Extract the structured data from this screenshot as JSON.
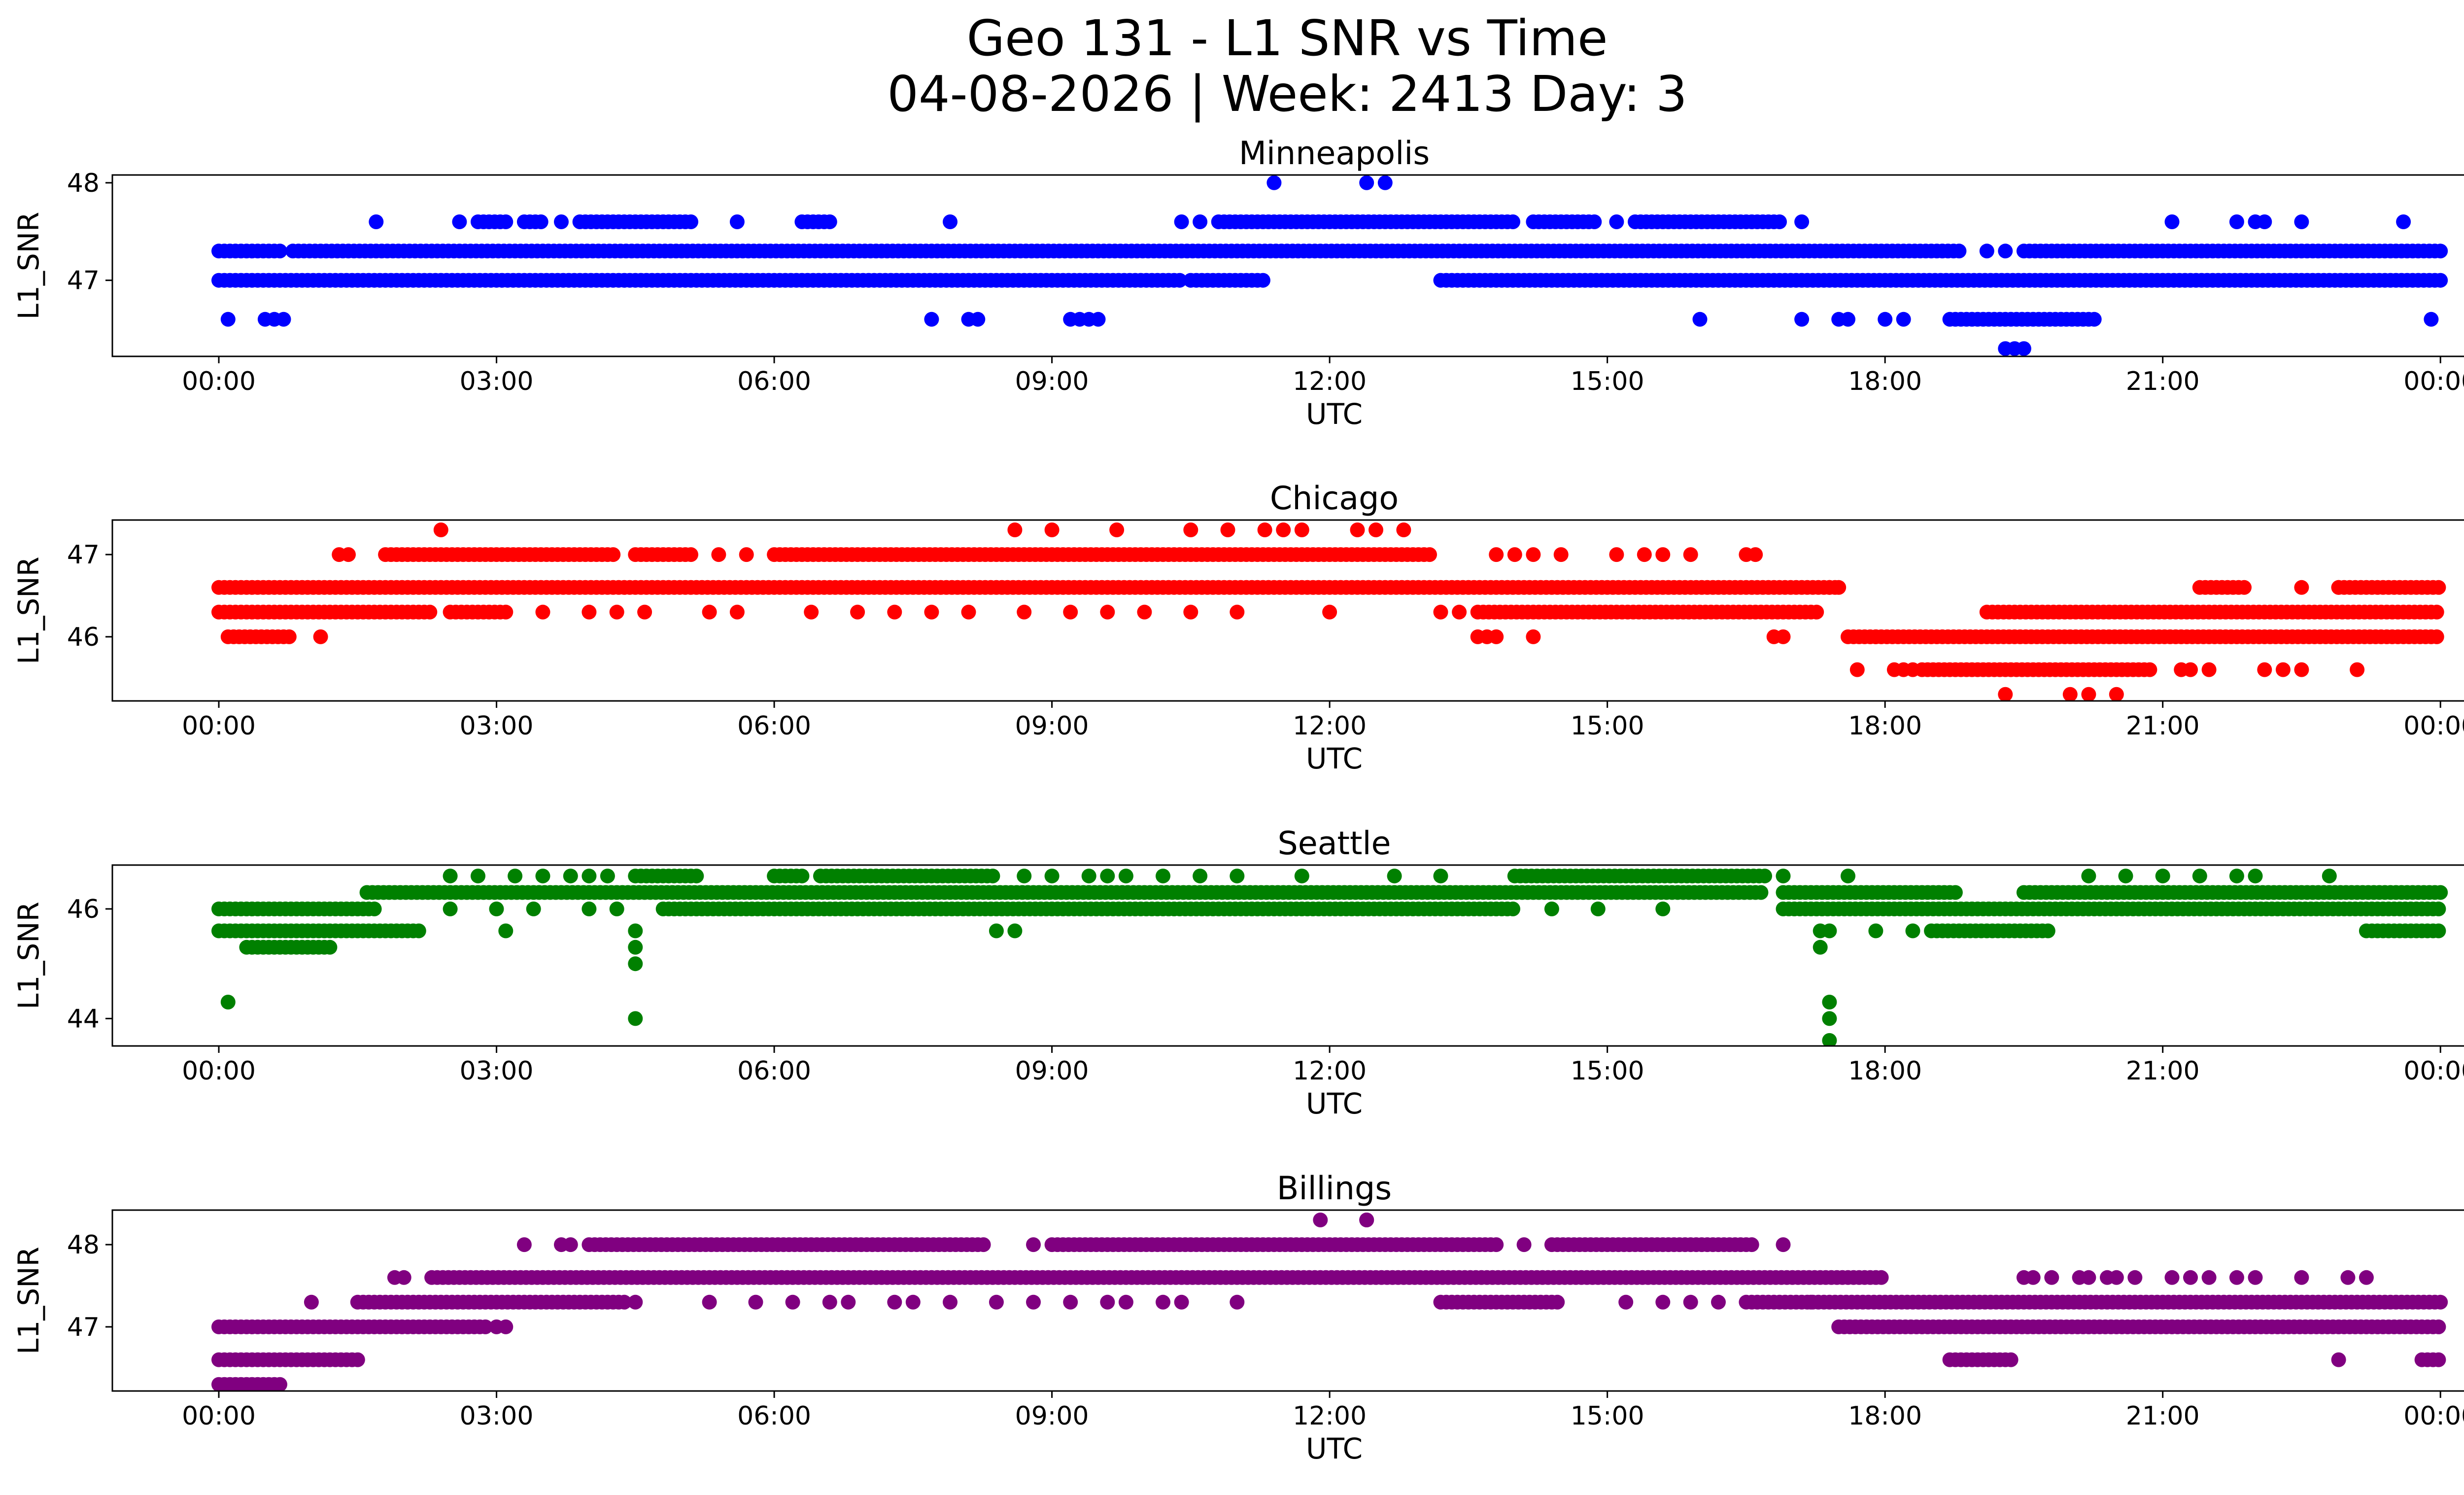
{
  "suptitle_line1": "Geo 131 - L1 SNR vs Time",
  "suptitle_line2": "04-08-2026 | Week: 2413 Day: 3",
  "chart_data": [
    {
      "type": "scatter",
      "title": "Minneapolis",
      "xlabel": "UTC",
      "ylabel": "L1_SNR",
      "color": "#0000ff",
      "x_ticks": [
        "00:00",
        "03:00",
        "06:00",
        "09:00",
        "12:00",
        "15:00",
        "18:00",
        "21:00",
        "00:00"
      ],
      "x_range_hours": [
        -1.15,
        25.25
      ],
      "y_ticks": [
        47,
        48
      ],
      "ylim": [
        46.22,
        48.08
      ],
      "levels": [
        {
          "y": 47.0,
          "segments": [
            [
              0.0,
              10.4
            ],
            [
              10.5,
              11.3
            ],
            [
              13.2,
              24.0
            ]
          ]
        },
        {
          "y": 47.3,
          "segments": [
            [
              0.0,
              0.7
            ],
            [
              0.8,
              18.8
            ],
            [
              19.5,
              24.0
            ]
          ]
        },
        {
          "y": 47.6,
          "segments": [
            [
              2.8,
              3.1
            ],
            [
              3.3,
              3.5
            ],
            [
              3.9,
              5.1
            ],
            [
              6.3,
              6.6
            ],
            [
              10.8,
              14.0
            ],
            [
              14.2,
              14.9
            ],
            [
              15.3,
              16.9
            ]
          ]
        },
        {
          "y": 46.6,
          "segments": [
            [
              18.7,
              20.3
            ]
          ]
        }
      ],
      "points": [
        [
          1.7,
          47.6
        ],
        [
          2.6,
          47.6
        ],
        [
          3.7,
          47.6
        ],
        [
          5.6,
          47.6
        ],
        [
          7.9,
          47.6
        ],
        [
          10.4,
          47.6
        ],
        [
          10.6,
          47.6
        ],
        [
          15.1,
          47.6
        ],
        [
          17.1,
          47.6
        ],
        [
          21.1,
          47.6
        ],
        [
          21.8,
          47.6
        ],
        [
          22.0,
          47.6
        ],
        [
          22.1,
          47.6
        ],
        [
          22.5,
          47.6
        ],
        [
          23.6,
          47.6
        ],
        [
          11.4,
          48.0
        ],
        [
          12.4,
          48.0
        ],
        [
          12.6,
          48.0
        ],
        [
          0.1,
          46.6
        ],
        [
          0.5,
          46.6
        ],
        [
          0.6,
          46.6
        ],
        [
          0.7,
          46.6
        ],
        [
          7.7,
          46.6
        ],
        [
          8.1,
          46.6
        ],
        [
          8.2,
          46.6
        ],
        [
          9.2,
          46.6
        ],
        [
          9.3,
          46.6
        ],
        [
          9.4,
          46.6
        ],
        [
          9.5,
          46.6
        ],
        [
          16.0,
          46.6
        ],
        [
          17.1,
          46.6
        ],
        [
          17.5,
          46.6
        ],
        [
          17.6,
          46.6
        ],
        [
          18.0,
          46.6
        ],
        [
          18.2,
          46.6
        ],
        [
          23.9,
          46.6
        ],
        [
          19.3,
          46.3
        ],
        [
          19.4,
          46.3
        ],
        [
          19.5,
          46.3
        ],
        [
          19.1,
          47.3
        ],
        [
          19.3,
          47.3
        ]
      ]
    },
    {
      "type": "scatter",
      "title": "Chicago",
      "xlabel": "UTC",
      "ylabel": "L1_SNR",
      "color": "#ff0000",
      "x_ticks": [
        "00:00",
        "03:00",
        "06:00",
        "09:00",
        "12:00",
        "15:00",
        "18:00",
        "21:00",
        "00:00"
      ],
      "x_range_hours": [
        -1.15,
        25.25
      ],
      "y_ticks": [
        46,
        47
      ],
      "ylim": [
        45.22,
        47.42
      ],
      "levels": [
        {
          "y": 46.6,
          "segments": [
            [
              0.0,
              17.5
            ],
            [
              21.4,
              21.9
            ],
            [
              22.9,
              24.0
            ]
          ]
        },
        {
          "y": 46.3,
          "segments": [
            [
              0.0,
              2.3
            ],
            [
              2.5,
              3.1
            ],
            [
              13.6,
              17.3
            ],
            [
              19.1,
              24.0
            ]
          ]
        },
        {
          "y": 46.0,
          "segments": [
            [
              0.1,
              0.8
            ],
            [
              17.6,
              24.0
            ]
          ]
        },
        {
          "y": 47.0,
          "segments": [
            [
              1.8,
              4.3
            ],
            [
              4.5,
              5.1
            ],
            [
              6.0,
              13.1
            ]
          ]
        },
        {
          "y": 45.6,
          "segments": [
            [
              18.4,
              20.9
            ]
          ]
        }
      ],
      "points": [
        [
          3.5,
          46.3
        ],
        [
          4.0,
          46.3
        ],
        [
          4.3,
          46.3
        ],
        [
          4.6,
          46.3
        ],
        [
          5.3,
          46.3
        ],
        [
          5.6,
          46.3
        ],
        [
          6.4,
          46.3
        ],
        [
          6.9,
          46.3
        ],
        [
          7.3,
          46.3
        ],
        [
          7.7,
          46.3
        ],
        [
          8.1,
          46.3
        ],
        [
          8.7,
          46.3
        ],
        [
          9.2,
          46.3
        ],
        [
          9.6,
          46.3
        ],
        [
          10.0,
          46.3
        ],
        [
          10.5,
          46.3
        ],
        [
          11.0,
          46.3
        ],
        [
          12.0,
          46.3
        ],
        [
          13.2,
          46.3
        ],
        [
          13.4,
          46.3
        ],
        [
          1.3,
          47.0
        ],
        [
          1.4,
          47.0
        ],
        [
          5.4,
          47.0
        ],
        [
          5.7,
          47.0
        ],
        [
          13.8,
          47.0
        ],
        [
          14.0,
          47.0
        ],
        [
          14.2,
          47.0
        ],
        [
          14.5,
          47.0
        ],
        [
          15.1,
          47.0
        ],
        [
          15.4,
          47.0
        ],
        [
          15.6,
          47.0
        ],
        [
          15.9,
          47.0
        ],
        [
          16.5,
          47.0
        ],
        [
          16.6,
          47.0
        ],
        [
          2.4,
          47.3
        ],
        [
          8.6,
          47.3
        ],
        [
          9.0,
          47.3
        ],
        [
          9.7,
          47.3
        ],
        [
          10.5,
          47.3
        ],
        [
          10.9,
          47.3
        ],
        [
          11.3,
          47.3
        ],
        [
          11.5,
          47.3
        ],
        [
          11.7,
          47.3
        ],
        [
          12.3,
          47.3
        ],
        [
          12.5,
          47.3
        ],
        [
          12.8,
          47.3
        ],
        [
          1.1,
          46.0
        ],
        [
          13.6,
          46.0
        ],
        [
          13.7,
          46.0
        ],
        [
          13.8,
          46.0
        ],
        [
          14.2,
          46.0
        ],
        [
          16.8,
          46.0
        ],
        [
          16.9,
          46.0
        ],
        [
          17.9,
          46.0
        ],
        [
          17.4,
          46.6
        ],
        [
          17.5,
          46.6
        ],
        [
          22.5,
          46.6
        ],
        [
          22.9,
          46.6
        ],
        [
          17.7,
          45.6
        ],
        [
          18.1,
          45.6
        ],
        [
          18.2,
          45.6
        ],
        [
          18.3,
          45.6
        ],
        [
          21.2,
          45.6
        ],
        [
          21.3,
          45.6
        ],
        [
          21.5,
          45.6
        ],
        [
          22.1,
          45.6
        ],
        [
          22.3,
          45.6
        ],
        [
          22.5,
          45.6
        ],
        [
          23.1,
          45.6
        ],
        [
          19.3,
          45.3
        ],
        [
          20.0,
          45.3
        ],
        [
          20.2,
          45.3
        ],
        [
          20.5,
          45.3
        ]
      ]
    },
    {
      "type": "scatter",
      "title": "Seattle",
      "xlabel": "UTC",
      "ylabel": "L1_SNR",
      "color": "#008000",
      "x_ticks": [
        "00:00",
        "03:00",
        "06:00",
        "09:00",
        "12:00",
        "15:00",
        "18:00",
        "21:00",
        "00:00"
      ],
      "x_range_hours": [
        -1.15,
        25.25
      ],
      "y_ticks": [
        44,
        46
      ],
      "ylim": [
        43.5,
        46.8
      ],
      "levels": [
        {
          "y": 46.0,
          "segments": [
            [
              0.0,
              1.7
            ],
            [
              4.8,
              14.0
            ],
            [
              16.9,
              24.0
            ]
          ]
        },
        {
          "y": 45.6,
          "segments": [
            [
              0.0,
              2.2
            ],
            [
              18.5,
              19.8
            ],
            [
              23.2,
              24.0
            ]
          ]
        },
        {
          "y": 46.3,
          "segments": [
            [
              1.6,
              16.7
            ],
            [
              16.9,
              18.8
            ],
            [
              19.5,
              24.0
            ]
          ]
        },
        {
          "y": 46.6,
          "segments": [
            [
              4.5,
              5.2
            ],
            [
              6.0,
              6.3
            ],
            [
              6.5,
              8.4
            ],
            [
              14.0,
              16.7
            ]
          ]
        },
        {
          "y": 45.3,
          "segments": [
            [
              0.3,
              1.2
            ]
          ]
        }
      ],
      "points": [
        [
          0.1,
          44.3
        ],
        [
          2.5,
          46.6
        ],
        [
          2.8,
          46.6
        ],
        [
          3.2,
          46.6
        ],
        [
          3.5,
          46.6
        ],
        [
          3.8,
          46.6
        ],
        [
          4.0,
          46.6
        ],
        [
          4.2,
          46.6
        ],
        [
          8.7,
          46.6
        ],
        [
          9.0,
          46.6
        ],
        [
          9.4,
          46.6
        ],
        [
          9.6,
          46.6
        ],
        [
          9.8,
          46.6
        ],
        [
          10.2,
          46.6
        ],
        [
          10.6,
          46.6
        ],
        [
          11.0,
          46.6
        ],
        [
          11.7,
          46.6
        ],
        [
          12.7,
          46.6
        ],
        [
          13.2,
          46.6
        ],
        [
          16.9,
          46.6
        ],
        [
          17.6,
          46.6
        ],
        [
          20.2,
          46.6
        ],
        [
          20.6,
          46.6
        ],
        [
          21.0,
          46.6
        ],
        [
          21.4,
          46.6
        ],
        [
          21.8,
          46.6
        ],
        [
          22.0,
          46.6
        ],
        [
          22.8,
          46.6
        ],
        [
          3.1,
          45.6
        ],
        [
          8.4,
          45.6
        ],
        [
          8.6,
          45.6
        ],
        [
          17.3,
          45.6
        ],
        [
          17.4,
          45.6
        ],
        [
          17.9,
          45.6
        ],
        [
          18.3,
          45.6
        ],
        [
          2.5,
          46.0
        ],
        [
          3.0,
          46.0
        ],
        [
          3.4,
          46.0
        ],
        [
          4.0,
          46.0
        ],
        [
          4.3,
          46.0
        ],
        [
          14.4,
          46.0
        ],
        [
          14.9,
          46.0
        ],
        [
          15.6,
          46.0
        ],
        [
          4.5,
          45.6
        ],
        [
          4.5,
          45.3
        ],
        [
          4.5,
          45.0
        ],
        [
          4.5,
          44.0
        ],
        [
          17.3,
          45.3
        ],
        [
          17.4,
          44.3
        ],
        [
          17.4,
          44.0
        ],
        [
          17.4,
          43.6
        ]
      ]
    },
    {
      "type": "scatter",
      "title": "Billings",
      "xlabel": "UTC",
      "ylabel": "L1_SNR",
      "color": "#800080",
      "x_ticks": [
        "00:00",
        "03:00",
        "06:00",
        "09:00",
        "12:00",
        "15:00",
        "18:00",
        "21:00",
        "00:00"
      ],
      "x_range_hours": [
        -1.15,
        25.25
      ],
      "y_ticks": [
        47,
        48
      ],
      "ylim": [
        46.22,
        48.42
      ],
      "levels": [
        {
          "y": 47.0,
          "segments": [
            [
              0.0,
              2.9
            ],
            [
              17.5,
              24.0
            ]
          ]
        },
        {
          "y": 46.6,
          "segments": [
            [
              0.0,
              1.5
            ],
            [
              18.7,
              19.4
            ],
            [
              23.8,
              24.0
            ]
          ]
        },
        {
          "y": 46.3,
          "segments": [
            [
              0.0,
              0.7
            ]
          ]
        },
        {
          "y": 47.3,
          "segments": [
            [
              1.5,
              4.4
            ],
            [
              13.2,
              14.5
            ],
            [
              16.5,
              24.0
            ]
          ]
        },
        {
          "y": 47.6,
          "segments": [
            [
              2.3,
              18.0
            ]
          ]
        },
        {
          "y": 48.0,
          "segments": [
            [
              4.0,
              8.3
            ],
            [
              9.0,
              13.8
            ],
            [
              14.4,
              16.6
            ]
          ]
        }
      ],
      "points": [
        [
          1.9,
          47.6
        ],
        [
          2.0,
          47.6
        ],
        [
          19.5,
          47.6
        ],
        [
          19.6,
          47.6
        ],
        [
          19.8,
          47.6
        ],
        [
          20.1,
          47.6
        ],
        [
          20.2,
          47.6
        ],
        [
          20.4,
          47.6
        ],
        [
          20.5,
          47.6
        ],
        [
          20.7,
          47.6
        ],
        [
          21.1,
          47.6
        ],
        [
          21.3,
          47.6
        ],
        [
          21.5,
          47.6
        ],
        [
          21.8,
          47.6
        ],
        [
          22.0,
          47.6
        ],
        [
          22.5,
          47.6
        ],
        [
          23.0,
          47.6
        ],
        [
          23.2,
          47.6
        ],
        [
          1.0,
          47.3
        ],
        [
          3.0,
          47.0
        ],
        [
          3.1,
          47.0
        ],
        [
          4.5,
          47.3
        ],
        [
          5.3,
          47.3
        ],
        [
          5.8,
          47.3
        ],
        [
          6.2,
          47.3
        ],
        [
          6.6,
          47.3
        ],
        [
          6.8,
          47.3
        ],
        [
          7.3,
          47.3
        ],
        [
          7.5,
          47.3
        ],
        [
          7.9,
          47.3
        ],
        [
          8.4,
          47.3
        ],
        [
          8.8,
          47.3
        ],
        [
          9.2,
          47.3
        ],
        [
          9.6,
          47.3
        ],
        [
          9.8,
          47.3
        ],
        [
          10.2,
          47.3
        ],
        [
          10.4,
          47.3
        ],
        [
          11.0,
          47.3
        ],
        [
          3.3,
          48.0
        ],
        [
          3.7,
          48.0
        ],
        [
          3.8,
          48.0
        ],
        [
          8.8,
          48.0
        ],
        [
          14.1,
          48.0
        ],
        [
          16.9,
          48.0
        ],
        [
          11.9,
          48.3
        ],
        [
          12.4,
          48.3
        ],
        [
          12.4,
          48.3
        ],
        [
          17.2,
          47.3
        ],
        [
          15.2,
          47.3
        ],
        [
          15.6,
          47.3
        ],
        [
          15.9,
          47.3
        ],
        [
          16.2,
          47.3
        ],
        [
          22.9,
          46.6
        ]
      ]
    }
  ]
}
